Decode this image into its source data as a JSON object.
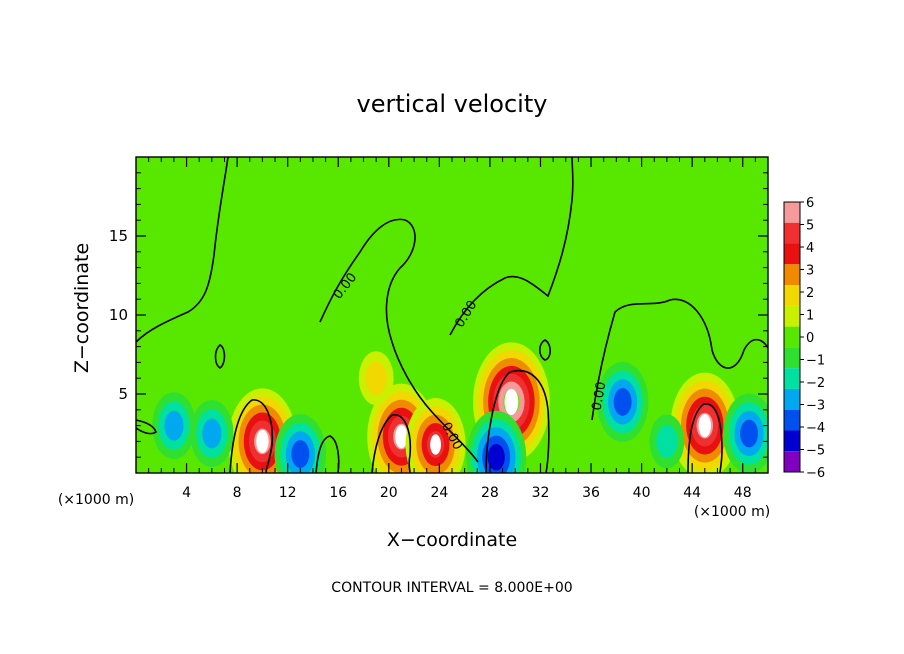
{
  "chart_data": {
    "type": "heatmap",
    "title": "vertical velocity",
    "xlabel": "X−coordinate",
    "ylabel": "Z−coordinate",
    "x_unit_left": "(×1000 m)",
    "x_unit_right": "(×1000 m)",
    "xlim": [
      0,
      50
    ],
    "ylim": [
      0,
      20
    ],
    "x_ticks": [
      4,
      8,
      12,
      16,
      20,
      24,
      28,
      32,
      36,
      40,
      44,
      48
    ],
    "y_ticks": [
      5,
      10,
      15
    ],
    "colorbar": {
      "levels": [
        6,
        5,
        4,
        3,
        2,
        1,
        0,
        -1,
        -2,
        -3,
        -4,
        -5,
        -6
      ],
      "labels": [
        "6",
        "5",
        "4",
        "3",
        "2",
        "1",
        "0",
        "−1",
        "−2",
        "−3",
        "−4",
        "−5",
        "−6"
      ],
      "colors": [
        "#f59a9a",
        "#f03030",
        "#e81010",
        "#f08a00",
        "#f0d800",
        "#c8f000",
        "#58e800",
        "#30e030",
        "#00e0a0",
        "#00a8f0",
        "#0050f0",
        "#0000d0",
        "#8000c0"
      ]
    },
    "contour_labels": [
      "0.00",
      "0.00",
      "0.00",
      "0.00"
    ],
    "footer": "CONTOUR INTERVAL = 8.000E+00",
    "features": [
      {
        "x": 10,
        "z": 2.0,
        "w": 6
      },
      {
        "x": 21,
        "z": 2.3,
        "w": 6
      },
      {
        "x": 23.7,
        "z": 1.8,
        "w": 5
      },
      {
        "x": 29.7,
        "z": 4.5,
        "w": 7
      },
      {
        "x": 45,
        "z": 3.0,
        "w": 6
      },
      {
        "x": 19,
        "z": 6.0,
        "w": 2
      },
      {
        "x": 3,
        "z": 3.0,
        "w": -3
      },
      {
        "x": 6,
        "z": 2.5,
        "w": -3
      },
      {
        "x": 13,
        "z": 1.2,
        "w": -4
      },
      {
        "x": 28.5,
        "z": 1.0,
        "w": -5
      },
      {
        "x": 38.5,
        "z": 4.5,
        "w": -4
      },
      {
        "x": 48.5,
        "z": 2.5,
        "w": -4
      },
      {
        "x": 42,
        "z": 2.0,
        "w": -2
      }
    ]
  }
}
